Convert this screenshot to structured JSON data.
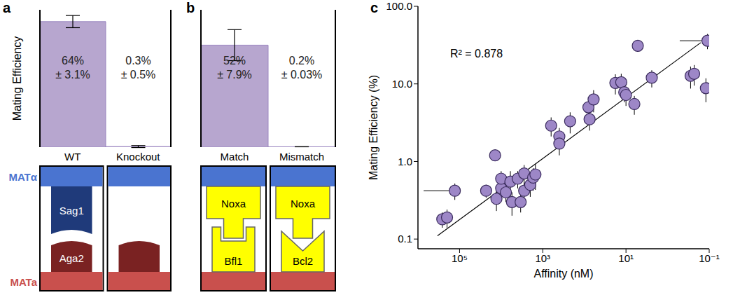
{
  "chart_data": [
    {
      "panel": "a",
      "type": "bar",
      "y_label": "Mating Efficiency",
      "categories": [
        "WT",
        "Knockout"
      ],
      "values": [
        64,
        0.3
      ],
      "value_labels": [
        "64%",
        "0.3%"
      ],
      "errors": [
        3.1,
        0.5
      ],
      "error_labels": [
        "± 3.1%",
        "± 0.5%"
      ],
      "color": "#b7a6cf",
      "ylim": [
        0,
        70
      ],
      "tick_labels": "x",
      "data_labels": true
    },
    {
      "panel": "b",
      "type": "bar",
      "categories": [
        "Match",
        "Mismatch"
      ],
      "values": [
        52,
        0.2
      ],
      "value_labels": [
        "52%",
        "0.2%"
      ],
      "errors": [
        7.9,
        0.03
      ],
      "error_labels": [
        "± 7.9%",
        "± 0.03%"
      ],
      "color": "#b7a6cf",
      "ylim": [
        0,
        70
      ],
      "tick_labels": "x",
      "data_labels": true
    },
    {
      "panel": "c",
      "type": "scatter",
      "x_label": "Affinity (nM)",
      "y_label": "Mating Efficiency (%)",
      "annotation": "R² = 0.878",
      "log": true,
      "marker": "circle",
      "color": "#9d87c7",
      "xlim": [
        1000000,
        0.1
      ],
      "xticks": [
        {
          "value": 100000,
          "label": "10⁵"
        },
        {
          "value": 1000,
          "label": "10³"
        },
        {
          "value": 10,
          "label": "10¹"
        },
        {
          "value": 0.1,
          "label": "10⁻¹"
        }
      ],
      "ylim": [
        0.075,
        100
      ],
      "yticks": [
        0.1,
        {
          "value": 1,
          "label": "1.0"
        },
        {
          "value": 10,
          "label": "10.0"
        },
        {
          "value": 100,
          "label": "100.0"
        }
      ],
      "x": [
        260000,
        200000,
        130000,
        23000,
        14000,
        13000,
        10000,
        10000,
        7700,
        6000,
        5500,
        4000,
        3400,
        2800,
        2800,
        2000,
        1700,
        1500,
        630,
        400,
        400,
        220,
        80,
        75,
        60,
        18,
        13,
        11,
        10,
        6.3,
        5.2,
        2.4,
        0.28,
        0.23,
        0.12,
        0.11
      ],
      "values": [
        0.18,
        0.19,
        0.42,
        0.42,
        1.2,
        0.33,
        0.45,
        0.6,
        0.4,
        0.55,
        0.3,
        0.6,
        0.3,
        0.42,
        0.7,
        0.5,
        0.62,
        0.68,
        2.9,
        2.1,
        1.7,
        3.3,
        5,
        3.5,
        6.3,
        10.3,
        10.5,
        7.8,
        7.2,
        5.5,
        31,
        12,
        12.7,
        13.5,
        8.8,
        36
      ],
      "y_errors": [
        0.04,
        0.05,
        0.1,
        0.08,
        0.15,
        0.1,
        0.1,
        0.15,
        0.1,
        0.2,
        0.1,
        0.15,
        0.08,
        0.1,
        0.2,
        0.15,
        0.2,
        0.25,
        0.8,
        0.6,
        0.5,
        1,
        1.5,
        1,
        2,
        3,
        3,
        2,
        2,
        1.5,
        5,
        3,
        4,
        4,
        3,
        8
      ],
      "x_errors": [
        null,
        null,
        [
          0,
          600000
        ],
        null,
        null,
        null,
        null,
        null,
        null,
        null,
        null,
        null,
        null,
        null,
        null,
        null,
        null,
        null,
        null,
        null,
        null,
        null,
        null,
        null,
        null,
        null,
        null,
        null,
        null,
        null,
        null,
        null,
        null,
        null,
        null,
        [
          0,
          0.4
        ]
      ],
      "fit_line": {
        "x": [
          340000,
          0.16
        ],
        "values": [
          0.11,
          34
        ]
      }
    }
  ],
  "diagrams": [
    {
      "panel": "a",
      "cell_labels": [
        "MATα",
        "MATa"
      ],
      "columns": [
        {
          "top": "Sag1",
          "bottom": "Aga2"
        },
        {
          "top": null,
          "bottom": null
        }
      ]
    },
    {
      "panel": "b",
      "columns": [
        {
          "top": "Noxa",
          "bottom": "Bfl1"
        },
        {
          "top": "Noxa",
          "bottom": "Bcl2"
        }
      ]
    }
  ]
}
